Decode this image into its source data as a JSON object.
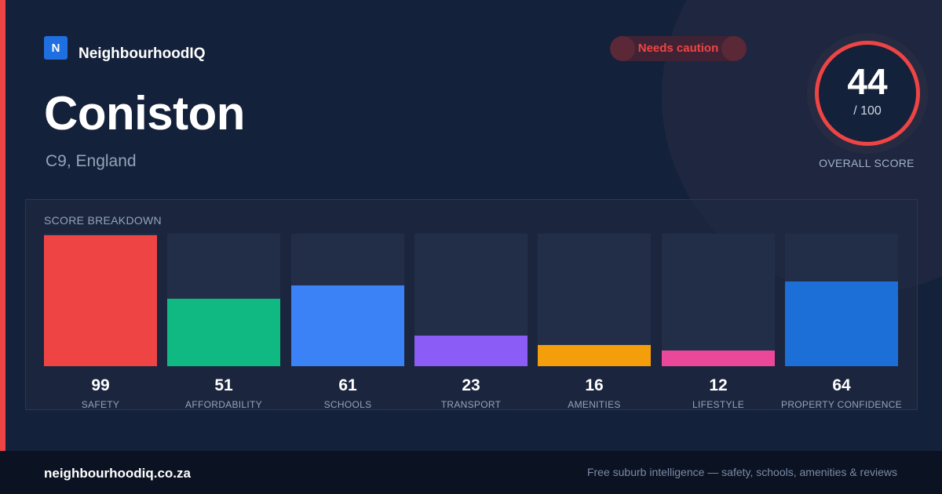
{
  "brand": {
    "logo_letter": "N",
    "name": "NeighbourhoodIQ"
  },
  "suburb": {
    "name": "Coniston",
    "location": "C9, England"
  },
  "status_badge": {
    "label": "Needs caution",
    "color": "#ef4444"
  },
  "overall_score": {
    "value": "44",
    "max_label": "/ 100",
    "caption": "OVERALL SCORE",
    "fraction": 0.44
  },
  "breakdown": {
    "title": "SCORE BREAKDOWN",
    "max": 100,
    "items": [
      {
        "label": "SAFETY",
        "value": 99,
        "color": "#ef4444"
      },
      {
        "label": "AFFORDABILITY",
        "value": 51,
        "color": "#10b981"
      },
      {
        "label": "SCHOOLS",
        "value": 61,
        "color": "#3b82f6"
      },
      {
        "label": "TRANSPORT",
        "value": 23,
        "color": "#8b5cf6"
      },
      {
        "label": "AMENITIES",
        "value": 16,
        "color": "#f59e0b"
      },
      {
        "label": "LIFESTYLE",
        "value": 12,
        "color": "#ec4899"
      },
      {
        "label": "PROPERTY CONFIDENCE",
        "value": 64,
        "color": "#1d6fd8"
      }
    ]
  },
  "footer": {
    "domain": "neighbourhoodiq.co.za",
    "tagline": "Free suburb intelligence — safety, schools, amenities & reviews"
  }
}
